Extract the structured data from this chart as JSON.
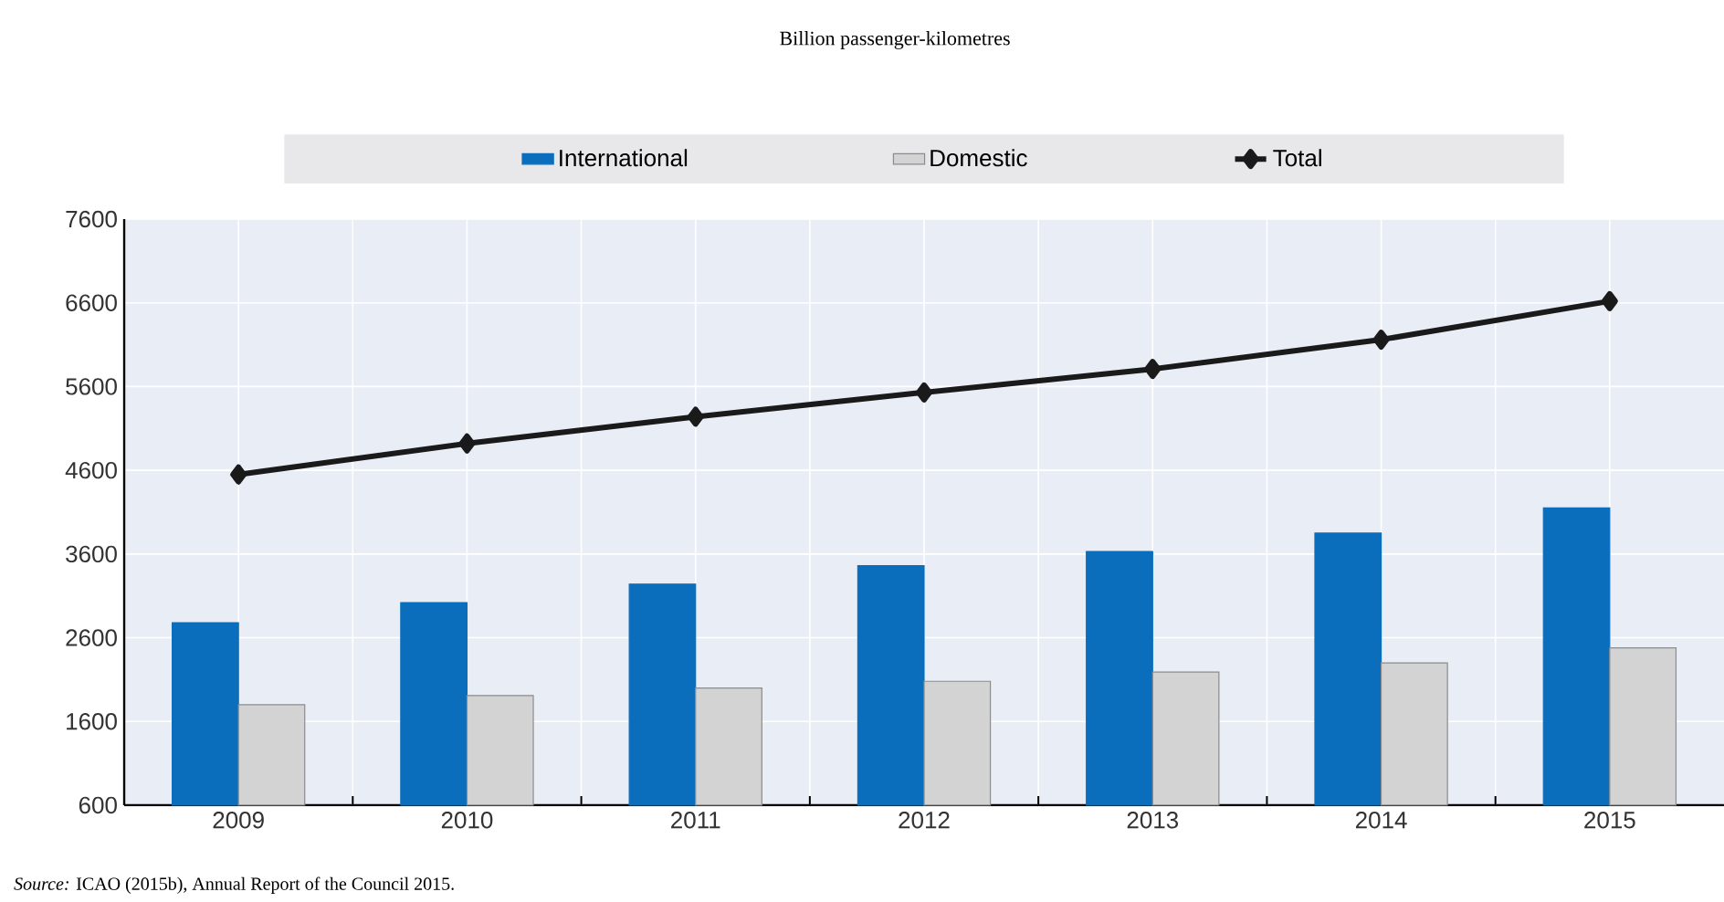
{
  "chart_data": {
    "type": "bar",
    "title": "Billion passenger-kilometres",
    "categories": [
      "2009",
      "2010",
      "2011",
      "2012",
      "2013",
      "2014",
      "2015"
    ],
    "series": [
      {
        "name": "International",
        "color": "#0a6ebd",
        "values": [
          2780,
          3020,
          3240,
          3460,
          3630,
          3850,
          4150
        ]
      },
      {
        "name": "Domestic",
        "color": "#d3d3d3",
        "values": [
          1800,
          1910,
          2000,
          2080,
          2190,
          2300,
          2480
        ]
      },
      {
        "name": "Total",
        "type": "line",
        "color": "#1a1a1a",
        "marker": "diamond",
        "values": [
          4550,
          4920,
          5240,
          5530,
          5810,
          6160,
          6620
        ]
      }
    ],
    "ylim": [
      600,
      7600
    ],
    "yticks": [
      600,
      1600,
      2600,
      3600,
      4600,
      5600,
      6600,
      7600
    ],
    "grid": true,
    "legend": "top",
    "annotations": [
      "*Source:* ICAO (2015b), Annual Report of the Council 2015."
    ]
  }
}
